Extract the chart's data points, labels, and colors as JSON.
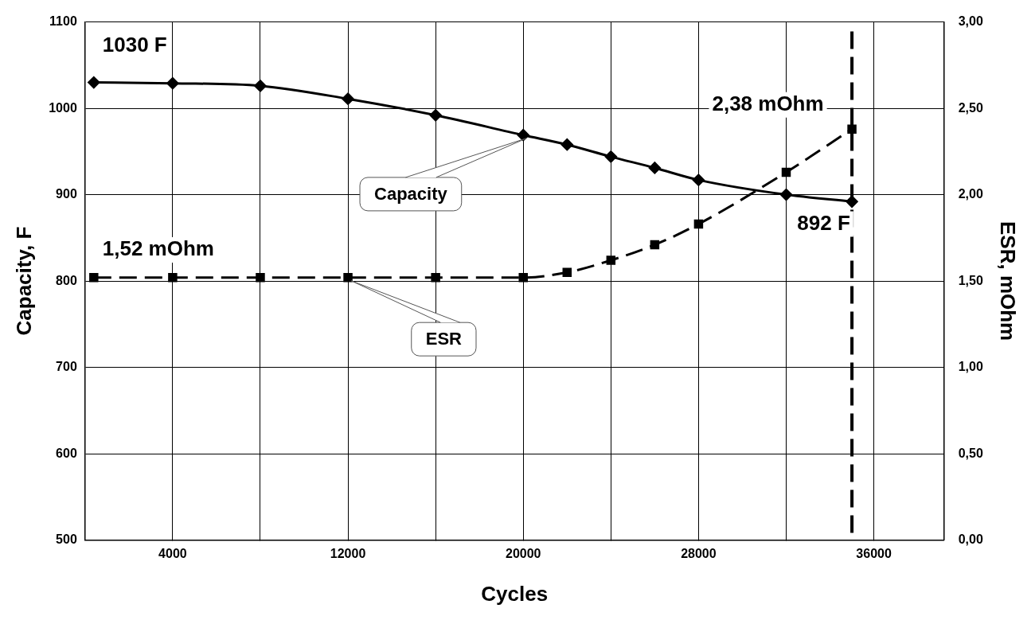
{
  "chart_data": {
    "type": "line",
    "xlabel": "Cycles",
    "ylabel": "Capacity, F",
    "y2label": "ESR, mOhm",
    "xlim": [
      0,
      39200
    ],
    "xticks": [
      4000,
      {
        "value": 8000,
        "label": null
      },
      12000,
      {
        "value": 16000,
        "label": null
      },
      20000,
      {
        "value": 24000,
        "label": null
      },
      28000,
      {
        "value": 32000,
        "label": null
      },
      36000
    ],
    "ylim": [
      500,
      1100
    ],
    "yticks": [
      500,
      600,
      700,
      800,
      900,
      1000,
      1100
    ],
    "y2lim": [
      0,
      3
    ],
    "y2ticks": [
      {
        "value": 0,
        "label": "0,00"
      },
      {
        "value": 0.5,
        "label": "0,50"
      },
      {
        "value": 1,
        "label": "1,00"
      },
      {
        "value": 1.5,
        "label": "1,50"
      },
      {
        "value": 2,
        "label": "2,00"
      },
      {
        "value": 2.5,
        "label": "2,50"
      },
      {
        "value": 3,
        "label": "3,00"
      }
    ],
    "grid": true,
    "legend": false,
    "series": [
      {
        "name": "Capacity",
        "color": "#000000",
        "marker": "diamond",
        "line_style": "solid",
        "x": [
          400,
          4000,
          8000,
          12000,
          16000,
          20000,
          22000,
          24000,
          26000,
          28000,
          32000,
          35000
        ],
        "values": [
          1030,
          1029,
          1026,
          1011,
          992,
          969,
          958,
          944,
          931,
          917,
          900,
          892
        ]
      },
      {
        "name": "ESR",
        "color": "#000000",
        "marker": "square",
        "line_style": "dashed",
        "axis": "y2",
        "x": [
          400,
          4000,
          8000,
          12000,
          16000,
          20000,
          22000,
          24000,
          26000,
          28000,
          32000,
          35000
        ],
        "values": [
          1.52,
          1.52,
          1.52,
          1.52,
          1.52,
          1.52,
          1.55,
          1.62,
          1.71,
          1.83,
          2.13,
          2.38
        ]
      }
    ],
    "ref_lines": [
      {
        "axis": "x",
        "value": 35000,
        "color": "#000000",
        "line_style": "dashed"
      }
    ],
    "annotations": [
      "1030 F",
      "892 F",
      "1,52 mOhm",
      "2,38 mOhm"
    ]
  }
}
